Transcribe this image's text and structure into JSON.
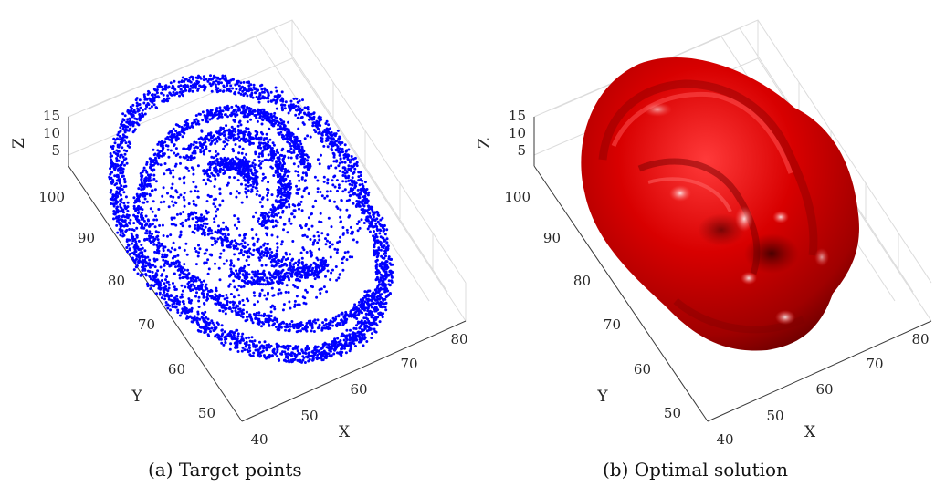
{
  "panels": [
    {
      "caption": "(a) Target points",
      "axes": {
        "xlabel": "X",
        "ylabel": "Y",
        "zlabel": "Z",
        "x_ticks": [
          "40",
          "50",
          "60",
          "70",
          "80"
        ],
        "y_ticks": [
          "50",
          "60",
          "70",
          "80",
          "90",
          "100"
        ],
        "z_ticks": [
          "5",
          "10",
          "15"
        ]
      },
      "render": "scatter",
      "color": "#0000ff"
    },
    {
      "caption": "(b) Optimal solution",
      "axes": {
        "xlabel": "X",
        "ylabel": "Y",
        "zlabel": "Z",
        "x_ticks": [
          "40",
          "50",
          "60",
          "70",
          "80"
        ],
        "y_ticks": [
          "50",
          "60",
          "70",
          "80",
          "90",
          "100"
        ],
        "z_ticks": [
          "5",
          "10",
          "15"
        ]
      },
      "render": "surface",
      "color": "#d40000"
    }
  ]
}
